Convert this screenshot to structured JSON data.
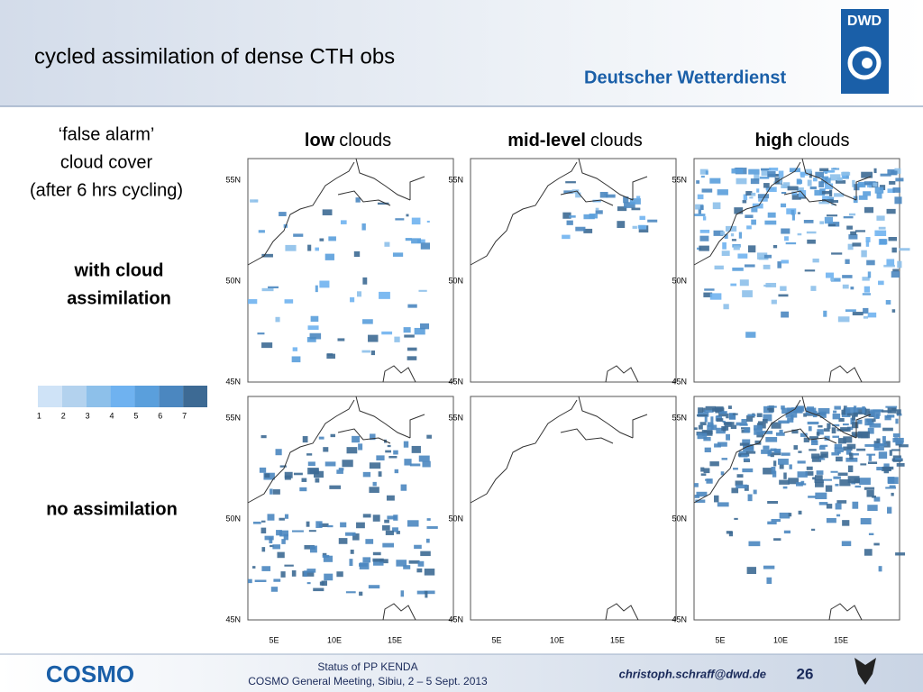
{
  "header": {
    "title": "cycled assimilation of dense CTH obs",
    "logo_text": "DWD",
    "org": "Deutscher Wetterdienst"
  },
  "left": {
    "intro": [
      "‘false alarm’",
      "cloud cover",
      "(after 6 hrs cycling)"
    ],
    "row1": [
      "with cloud",
      "assimilation"
    ],
    "row2": "no  assimilation"
  },
  "columns": [
    {
      "bold": "low",
      "rest": "clouds"
    },
    {
      "bold": "mid-level",
      "rest": "clouds"
    },
    {
      "bold": "high",
      "rest": "clouds"
    }
  ],
  "lat_labels": [
    "55N",
    "50N",
    "45N"
  ],
  "lon_labels": [
    "5E",
    "10E",
    "15E"
  ],
  "colorbar": {
    "labels": [
      1,
      2,
      3,
      4,
      5,
      6,
      7
    ],
    "colors": [
      "#cfe3f7",
      "#b3d2ee",
      "#8dc0ea",
      "#6fb2f0",
      "#5a9fdc",
      "#4b87c0",
      "#3d6a94"
    ]
  },
  "footer": {
    "line1": "Status of PP KENDA",
    "line2": "COSMO General Meeting, Sibiu, 2 – 5 Sept. 2013",
    "email": "christoph.schraff@dwd.de",
    "page": "26",
    "logo": "COSMO"
  }
}
